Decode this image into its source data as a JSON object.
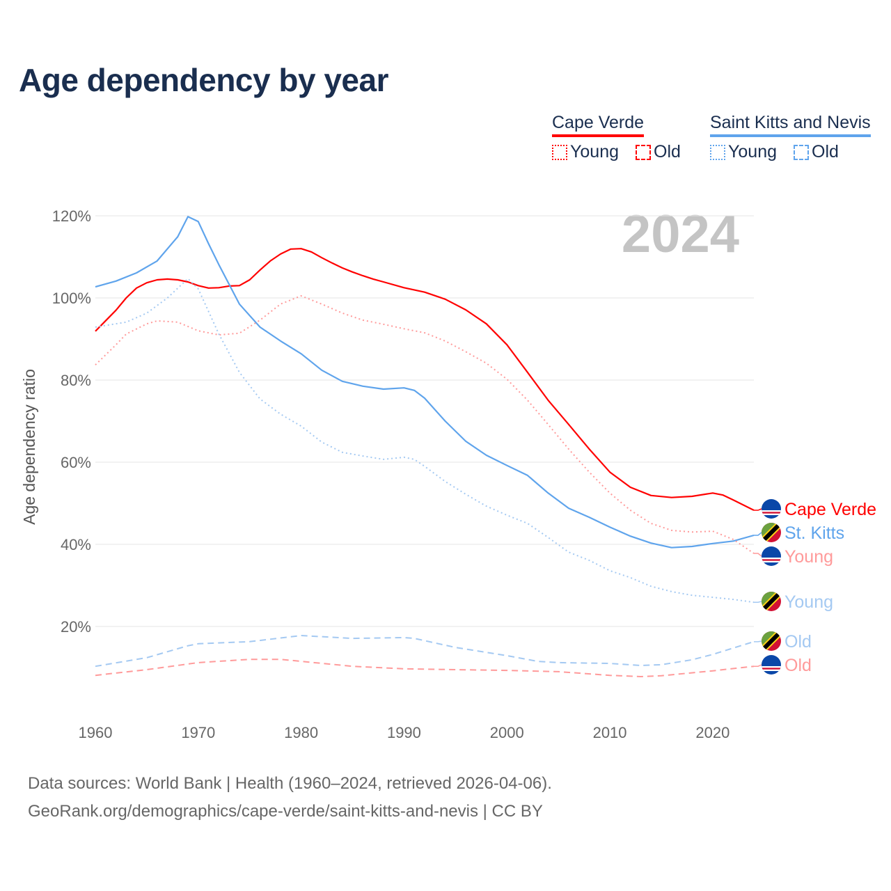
{
  "chart_data": {
    "type": "line",
    "title": "Age dependency by year",
    "ylabel": "Age dependency ratio",
    "xlabel": "",
    "xlim": [
      1960,
      2024
    ],
    "ylim": [
      0,
      120
    ],
    "x_ticks": [
      "1960",
      "1970",
      "1980",
      "1990",
      "2000",
      "2010",
      "2020"
    ],
    "y_ticks": [
      "20%",
      "40%",
      "60%",
      "80%",
      "100%",
      "120%"
    ],
    "year_overlay": "2024",
    "legend": {
      "placement": "top-right",
      "countries": [
        {
          "name": "Cape Verde",
          "color": "#ff0000"
        },
        {
          "name": "Saint Kitts and Nevis",
          "color": "#5fa4ec"
        }
      ],
      "young_label": "Young",
      "old_label": "Old"
    },
    "series": [
      {
        "name": "Cape Verde",
        "end_label": "Cape Verde",
        "country": "cv",
        "style": "solid",
        "color": "#ff0000",
        "points": [
          [
            1960,
            91.9
          ],
          [
            1962,
            97
          ],
          [
            1963,
            100
          ],
          [
            1964,
            102.4
          ],
          [
            1965,
            103.7
          ],
          [
            1966,
            104.4
          ],
          [
            1967,
            104.6
          ],
          [
            1968,
            104.4
          ],
          [
            1969,
            103.9
          ],
          [
            1970,
            103
          ],
          [
            1971,
            102.4
          ],
          [
            1972,
            102.5
          ],
          [
            1973,
            102.9
          ],
          [
            1974,
            103
          ],
          [
            1975,
            104.4
          ],
          [
            1976,
            106.8
          ],
          [
            1977,
            109
          ],
          [
            1978,
            110.7
          ],
          [
            1979,
            111.9
          ],
          [
            1980,
            112
          ],
          [
            1981,
            111.2
          ],
          [
            1982,
            109.8
          ],
          [
            1983,
            108.5
          ],
          [
            1984,
            107.3
          ],
          [
            1985,
            106.3
          ],
          [
            1986,
            105.4
          ],
          [
            1987,
            104.6
          ],
          [
            1988,
            103.9
          ],
          [
            1990,
            102.5
          ],
          [
            1992,
            101.4
          ],
          [
            1994,
            99.7
          ],
          [
            1996,
            97.1
          ],
          [
            1998,
            93.7
          ],
          [
            2000,
            88.6
          ],
          [
            2002,
            81.9
          ],
          [
            2004,
            75.1
          ],
          [
            2006,
            69.2
          ],
          [
            2008,
            63.2
          ],
          [
            2010,
            57.6
          ],
          [
            2012,
            53.9
          ],
          [
            2014,
            51.9
          ],
          [
            2016,
            51.4
          ],
          [
            2018,
            51.7
          ],
          [
            2020,
            52.5
          ],
          [
            2021,
            52
          ],
          [
            2022,
            50.8
          ],
          [
            2024,
            48.3
          ]
        ]
      },
      {
        "name": "Saint Kitts and Nevis",
        "end_label": "St. Kitts",
        "country": "kn",
        "style": "solid",
        "color": "#5fa4ec",
        "points": [
          [
            1960,
            102.7
          ],
          [
            1962,
            104.1
          ],
          [
            1964,
            106.1
          ],
          [
            1966,
            109
          ],
          [
            1968,
            114.9
          ],
          [
            1969,
            119.8
          ],
          [
            1970,
            118.6
          ],
          [
            1971,
            113.2
          ],
          [
            1972,
            108.1
          ],
          [
            1974,
            98.5
          ],
          [
            1976,
            92.9
          ],
          [
            1978,
            89.5
          ],
          [
            1980,
            86.4
          ],
          [
            1982,
            82.4
          ],
          [
            1984,
            79.7
          ],
          [
            1986,
            78.5
          ],
          [
            1988,
            77.8
          ],
          [
            1990,
            78.1
          ],
          [
            1991,
            77.5
          ],
          [
            1992,
            75.6
          ],
          [
            1994,
            70
          ],
          [
            1996,
            65.1
          ],
          [
            1998,
            61.7
          ],
          [
            2000,
            59.2
          ],
          [
            2002,
            56.8
          ],
          [
            2004,
            52.5
          ],
          [
            2006,
            48.8
          ],
          [
            2008,
            46.6
          ],
          [
            2010,
            44.2
          ],
          [
            2012,
            42
          ],
          [
            2014,
            40.3
          ],
          [
            2016,
            39.2
          ],
          [
            2018,
            39.5
          ],
          [
            2020,
            40.2
          ],
          [
            2022,
            40.8
          ],
          [
            2024,
            42.2
          ]
        ]
      },
      {
        "name": "Cape Verde Young",
        "end_label": "Young",
        "country": "cv",
        "style": "dotted",
        "color": "#ff9a9a",
        "points": [
          [
            1960,
            83.7
          ],
          [
            1962,
            88.6
          ],
          [
            1963,
            91.2
          ],
          [
            1965,
            93.7
          ],
          [
            1966,
            94.4
          ],
          [
            1968,
            94.1
          ],
          [
            1970,
            92
          ],
          [
            1972,
            91
          ],
          [
            1974,
            91.4
          ],
          [
            1976,
            94.6
          ],
          [
            1978,
            98.5
          ],
          [
            1980,
            100.5
          ],
          [
            1982,
            98.5
          ],
          [
            1984,
            96.3
          ],
          [
            1986,
            94.6
          ],
          [
            1988,
            93.6
          ],
          [
            1990,
            92.5
          ],
          [
            1992,
            91.5
          ],
          [
            1994,
            89.5
          ],
          [
            1996,
            86.9
          ],
          [
            1998,
            84.1
          ],
          [
            2000,
            80.2
          ],
          [
            2002,
            75.1
          ],
          [
            2004,
            69.2
          ],
          [
            2006,
            63.2
          ],
          [
            2008,
            57.6
          ],
          [
            2010,
            52.5
          ],
          [
            2012,
            48.3
          ],
          [
            2014,
            45.1
          ],
          [
            2016,
            43.4
          ],
          [
            2018,
            43
          ],
          [
            2020,
            43.2
          ],
          [
            2022,
            41.2
          ],
          [
            2024,
            37.8
          ]
        ]
      },
      {
        "name": "Saint Kitts and Nevis Young",
        "end_label": "Young",
        "country": "kn",
        "style": "dotted",
        "color": "#a4c9f2",
        "points": [
          [
            1960,
            92.9
          ],
          [
            1963,
            94.1
          ],
          [
            1965,
            96.3
          ],
          [
            1967,
            100
          ],
          [
            1969,
            104.7
          ],
          [
            1970,
            102.2
          ],
          [
            1972,
            91.2
          ],
          [
            1974,
            81.9
          ],
          [
            1976,
            75.4
          ],
          [
            1978,
            71.7
          ],
          [
            1980,
            68.8
          ],
          [
            1982,
            64.9
          ],
          [
            1984,
            62.4
          ],
          [
            1986,
            61.5
          ],
          [
            1988,
            60.7
          ],
          [
            1990,
            61.2
          ],
          [
            1991,
            60.7
          ],
          [
            1992,
            59
          ],
          [
            1994,
            55.3
          ],
          [
            1996,
            52.2
          ],
          [
            1998,
            49.3
          ],
          [
            2000,
            47.1
          ],
          [
            2002,
            45.1
          ],
          [
            2004,
            41.7
          ],
          [
            2006,
            38.1
          ],
          [
            2008,
            36.1
          ],
          [
            2010,
            33.6
          ],
          [
            2012,
            31.9
          ],
          [
            2014,
            29.8
          ],
          [
            2016,
            28.5
          ],
          [
            2018,
            27.6
          ],
          [
            2020,
            27.1
          ],
          [
            2022,
            26.6
          ],
          [
            2024,
            25.9
          ]
        ]
      },
      {
        "name": "Saint Kitts and Nevis Old",
        "end_label": "Old",
        "country": "kn",
        "style": "dashed",
        "color": "#a4c9f2",
        "points": [
          [
            1960,
            10.3
          ],
          [
            1965,
            12.4
          ],
          [
            1969,
            15.3
          ],
          [
            1970,
            15.8
          ],
          [
            1975,
            16.3
          ],
          [
            1980,
            17.8
          ],
          [
            1985,
            17.1
          ],
          [
            1990,
            17.3
          ],
          [
            1991,
            17.1
          ],
          [
            1995,
            14.9
          ],
          [
            2000,
            12.9
          ],
          [
            2003,
            11.5
          ],
          [
            2005,
            11.2
          ],
          [
            2010,
            11
          ],
          [
            2013,
            10.5
          ],
          [
            2015,
            10.7
          ],
          [
            2018,
            11.9
          ],
          [
            2020,
            13.2
          ],
          [
            2024,
            16.3
          ]
        ]
      },
      {
        "name": "Cape Verde Old",
        "end_label": "Old",
        "country": "cv",
        "style": "dashed",
        "color": "#ff9a9a",
        "points": [
          [
            1960,
            8.1
          ],
          [
            1965,
            9.5
          ],
          [
            1970,
            11.2
          ],
          [
            1975,
            12
          ],
          [
            1978,
            12
          ],
          [
            1980,
            11.5
          ],
          [
            1985,
            10.3
          ],
          [
            1990,
            9.7
          ],
          [
            1995,
            9.5
          ],
          [
            2000,
            9.3
          ],
          [
            2005,
            9
          ],
          [
            2010,
            8.1
          ],
          [
            2013,
            7.8
          ],
          [
            2015,
            8
          ],
          [
            2020,
            9.2
          ],
          [
            2024,
            10.3
          ]
        ]
      }
    ]
  },
  "source": {
    "line1": "Data sources: World Bank | Health (1960–2024, retrieved 2026-04-06).",
    "line2": "GeoRank.org/demographics/cape-verde/saint-kitts-and-nevis | CC BY"
  }
}
